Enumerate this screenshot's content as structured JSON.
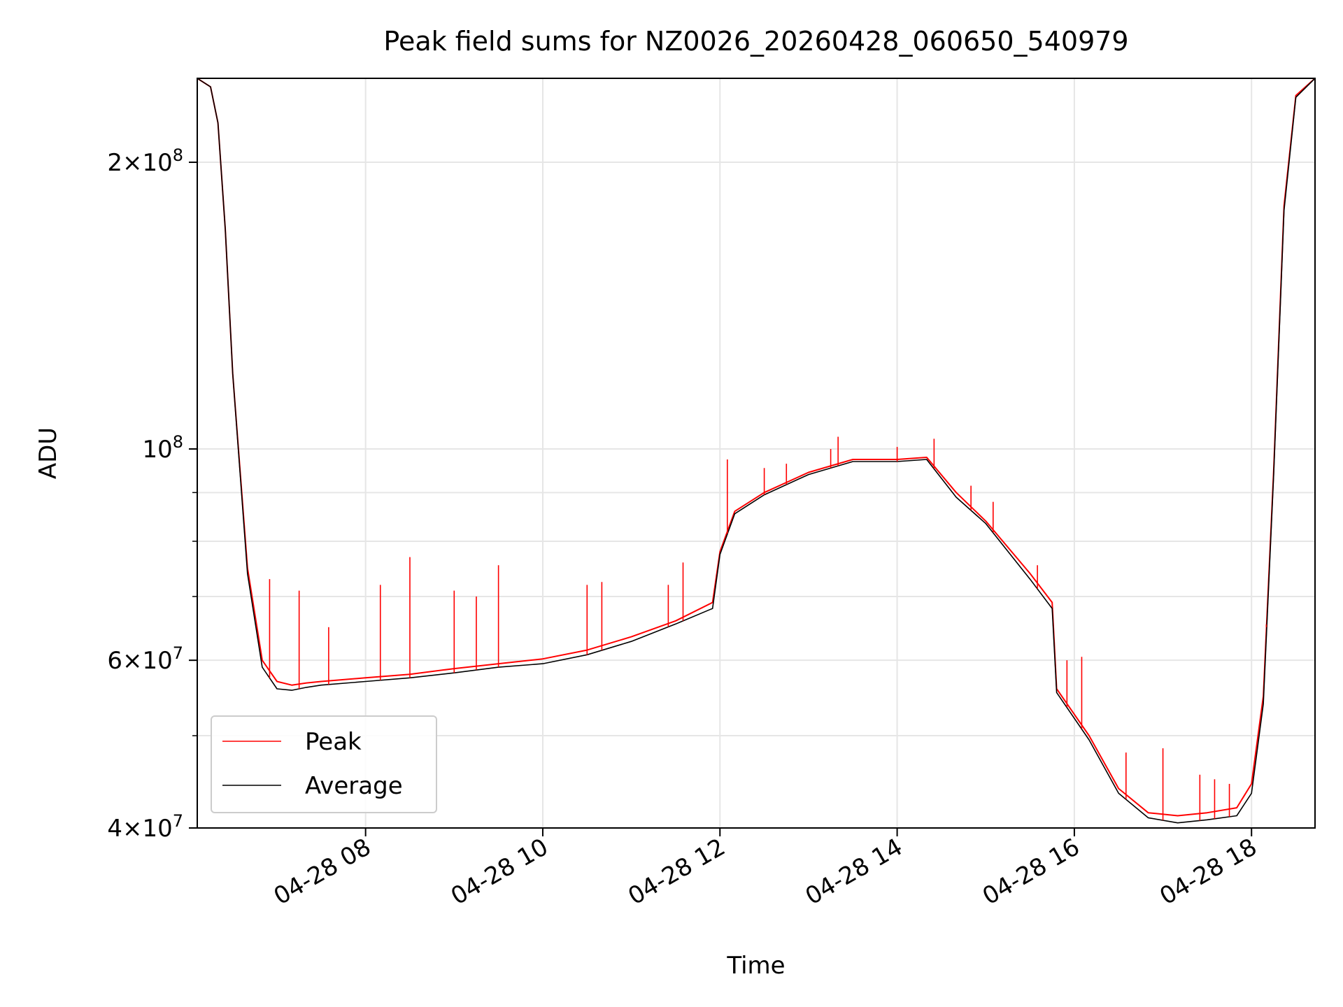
{
  "chart_data": {
    "type": "line",
    "title": "Peak field sums for NZ0026_20260428_060650_540979",
    "xlabel": "Time",
    "ylabel": "ADU",
    "x_scale": "time",
    "y_scale": "log",
    "xlim": [
      "04-28 06:06",
      "04-28 18:43"
    ],
    "ylim": [
      40000000,
      245000000
    ],
    "x_ticks": [
      {
        "t": "04-28 08:00",
        "label": "04-28 08"
      },
      {
        "t": "04-28 10:00",
        "label": "04-28 10"
      },
      {
        "t": "04-28 12:00",
        "label": "04-28 12"
      },
      {
        "t": "04-28 14:00",
        "label": "04-28 14"
      },
      {
        "t": "04-28 16:00",
        "label": "04-28 16"
      },
      {
        "t": "04-28 18:00",
        "label": "04-28 18"
      }
    ],
    "y_ticks": [
      {
        "value": 40000000,
        "mantissa": "4",
        "exponent": "7"
      },
      {
        "value": 60000000,
        "mantissa": "6",
        "exponent": "7"
      },
      {
        "value": 100000000,
        "mantissa": "",
        "exponent": "8"
      },
      {
        "value": 200000000,
        "mantissa": "2",
        "exponent": "8"
      }
    ],
    "y_minor_ticks": [
      50000000,
      70000000,
      80000000,
      90000000
    ],
    "grid": true,
    "legend_position": "lower-left",
    "series": [
      {
        "name": "Peak",
        "color": "#ff0000",
        "x": [
          "04-28 06:06",
          "04-28 06:15",
          "04-28 06:20",
          "04-28 06:25",
          "04-28 06:30",
          "04-28 06:40",
          "04-28 06:50",
          "04-28 07:00",
          "04-28 07:10",
          "04-28 07:20",
          "04-28 07:30",
          "04-28 08:00",
          "04-28 08:30",
          "04-28 09:00",
          "04-28 09:30",
          "04-28 10:00",
          "04-28 10:30",
          "04-28 11:00",
          "04-28 11:30",
          "04-28 11:55",
          "04-28 12:00",
          "04-28 12:10",
          "04-28 12:30",
          "04-28 13:00",
          "04-28 13:30",
          "04-28 14:00",
          "04-28 14:20",
          "04-28 14:40",
          "04-28 15:00",
          "04-28 15:30",
          "04-28 15:45",
          "04-28 15:48",
          "04-28 16:10",
          "04-28 16:30",
          "04-28 16:50",
          "04-28 17:10",
          "04-28 17:30",
          "04-28 17:50",
          "04-28 18:00",
          "04-28 18:08",
          "04-28 18:15",
          "04-28 18:22",
          "04-28 18:30",
          "04-28 18:43"
        ],
        "y": [
          245000000,
          240000000,
          220000000,
          170000000,
          120000000,
          75000000,
          60000000,
          57000000,
          56500000,
          56800000,
          57000000,
          57500000,
          58000000,
          58800000,
          59500000,
          60200000,
          61500000,
          63500000,
          66000000,
          69000000,
          78000000,
          86000000,
          90000000,
          94500000,
          97500000,
          97500000,
          98000000,
          90000000,
          84000000,
          74000000,
          69000000,
          56000000,
          50000000,
          44000000,
          41500000,
          41200000,
          41500000,
          42000000,
          44500000,
          55000000,
          95000000,
          180000000,
          235000000,
          245000000
        ],
        "spikes": [
          {
            "x": "04-28 06:55",
            "y": 73000000
          },
          {
            "x": "04-28 07:15",
            "y": 71000000
          },
          {
            "x": "04-28 07:35",
            "y": 65000000
          },
          {
            "x": "04-28 08:10",
            "y": 72000000
          },
          {
            "x": "04-28 08:30",
            "y": 77000000
          },
          {
            "x": "04-28 09:00",
            "y": 71000000
          },
          {
            "x": "04-28 09:15",
            "y": 70000000
          },
          {
            "x": "04-28 09:30",
            "y": 75500000
          },
          {
            "x": "04-28 10:30",
            "y": 72000000
          },
          {
            "x": "04-28 10:40",
            "y": 72500000
          },
          {
            "x": "04-28 11:25",
            "y": 72000000
          },
          {
            "x": "04-28 11:35",
            "y": 76000000
          },
          {
            "x": "04-28 12:05",
            "y": 97500000
          },
          {
            "x": "04-28 12:30",
            "y": 95500000
          },
          {
            "x": "04-28 12:45",
            "y": 96500000
          },
          {
            "x": "04-28 13:15",
            "y": 100000000
          },
          {
            "x": "04-28 13:20",
            "y": 103000000
          },
          {
            "x": "04-28 14:00",
            "y": 100500000
          },
          {
            "x": "04-28 14:25",
            "y": 102500000
          },
          {
            "x": "04-28 14:50",
            "y": 91500000
          },
          {
            "x": "04-28 15:05",
            "y": 88000000
          },
          {
            "x": "04-28 15:35",
            "y": 75500000
          },
          {
            "x": "04-28 15:55",
            "y": 60000000
          },
          {
            "x": "04-28 16:05",
            "y": 60500000
          },
          {
            "x": "04-28 16:35",
            "y": 48000000
          },
          {
            "x": "04-28 17:00",
            "y": 48500000
          },
          {
            "x": "04-28 17:25",
            "y": 45500000
          },
          {
            "x": "04-28 17:35",
            "y": 45000000
          },
          {
            "x": "04-28 17:45",
            "y": 44500000
          },
          {
            "x": "04-28 18:10",
            "y": 65000000
          }
        ]
      },
      {
        "name": "Average",
        "color": "#000000",
        "x": [
          "04-28 06:06",
          "04-28 06:15",
          "04-28 06:20",
          "04-28 06:25",
          "04-28 06:30",
          "04-28 06:40",
          "04-28 06:50",
          "04-28 07:00",
          "04-28 07:10",
          "04-28 07:20",
          "04-28 07:30",
          "04-28 08:00",
          "04-28 08:30",
          "04-28 09:00",
          "04-28 09:30",
          "04-28 10:00",
          "04-28 10:30",
          "04-28 11:00",
          "04-28 11:30",
          "04-28 11:55",
          "04-28 12:00",
          "04-28 12:10",
          "04-28 12:30",
          "04-28 13:00",
          "04-28 13:30",
          "04-28 14:00",
          "04-28 14:20",
          "04-28 14:40",
          "04-28 15:00",
          "04-28 15:30",
          "04-28 15:45",
          "04-28 15:48",
          "04-28 16:10",
          "04-28 16:30",
          "04-28 16:50",
          "04-28 17:10",
          "04-28 17:30",
          "04-28 17:50",
          "04-28 18:00",
          "04-28 18:08",
          "04-28 18:15",
          "04-28 18:22",
          "04-28 18:30",
          "04-28 18:43"
        ],
        "y": [
          245000000,
          240000000,
          220000000,
          170000000,
          120000000,
          74000000,
          59000000,
          56000000,
          55800000,
          56200000,
          56500000,
          57000000,
          57500000,
          58200000,
          59000000,
          59500000,
          60800000,
          62800000,
          65500000,
          68000000,
          77500000,
          85500000,
          89500000,
          94000000,
          97000000,
          97000000,
          97500000,
          89000000,
          83500000,
          73000000,
          68000000,
          55500000,
          49500000,
          43500000,
          41000000,
          40500000,
          40800000,
          41200000,
          43500000,
          54000000,
          94000000,
          178000000,
          234000000,
          245000000
        ]
      }
    ]
  }
}
